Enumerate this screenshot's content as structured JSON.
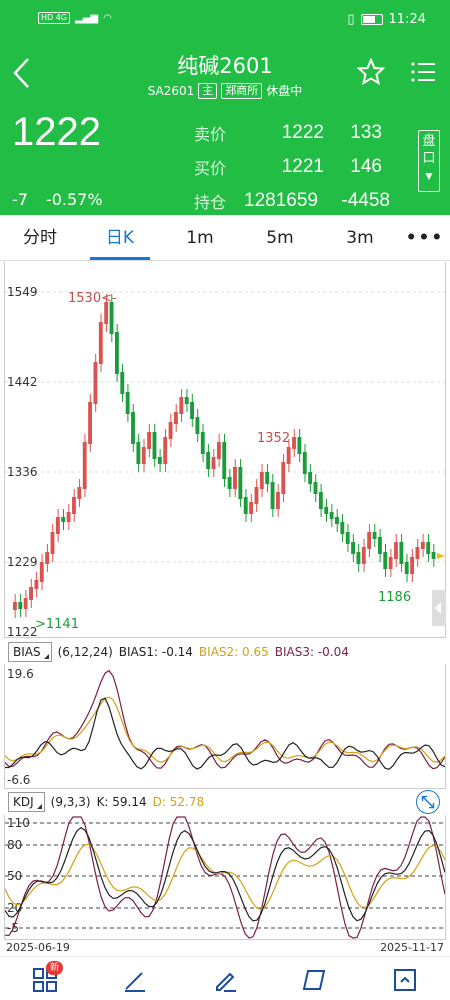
{
  "statusbar": {
    "left": "HD 4G",
    "time": "11:24"
  },
  "header": {
    "title": "纯碱2601",
    "code": "SA2601",
    "main_tag": "主",
    "exchange_tag": "郑商所",
    "status": "休盘中",
    "price": "1222",
    "change": "-7",
    "change_pct": "-0.57%",
    "sell_label": "卖价",
    "sell_price": "1222",
    "sell_vol": "133",
    "buy_label": "买价",
    "buy_price": "1221",
    "buy_vol": "146",
    "oi_label": "持仓",
    "oi_value": "1281659",
    "oi_change": "-4458",
    "pan_label": "盘口"
  },
  "tabs": [
    "分时",
    "日K",
    "1m",
    "5m",
    "3m",
    "•••"
  ],
  "active_tab": "日K",
  "kline": {
    "y_labels": [
      "1549",
      "1442",
      "1336",
      "1229",
      "1122"
    ],
    "high_annotation": "1530<-",
    "low_annotation": ">1141",
    "peak2_annotation": "1352",
    "trough_annotation": "1186",
    "up_color": "#d9534f",
    "down_color": "#1a9c3a"
  },
  "bias": {
    "name": "BIAS",
    "params": "(6,12,24)",
    "bias1": "BIAS1: -0.14",
    "bias2": "BIAS2: 0.65",
    "bias3": "BIAS3: -0.04",
    "y_top": "19.6",
    "y_bottom": "-6.6",
    "colors": {
      "bias1": "#222222",
      "bias2": "#d4a017",
      "bias3": "#7a1f4a"
    }
  },
  "kdj": {
    "name": "KDJ",
    "params": "(9,3,3)",
    "k": "K: 59.14",
    "d": "D: 52.78",
    "y_labels": [
      "110",
      "80",
      "50",
      "20",
      "-5"
    ],
    "colors": {
      "k": "#222222",
      "d": "#d4a017",
      "j": "#7a1f4a"
    }
  },
  "dates": {
    "start": "2025-06-19",
    "end": "2025-11-17"
  },
  "bottombar": {
    "badge": "新"
  }
}
